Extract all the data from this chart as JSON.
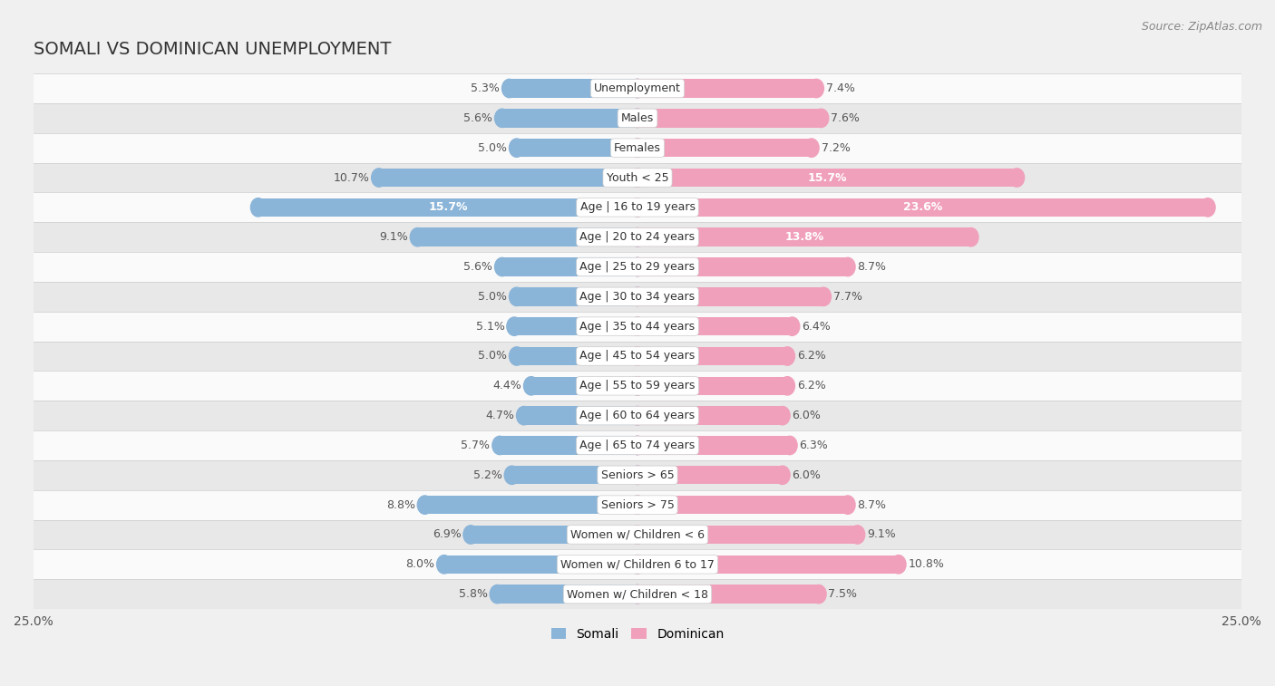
{
  "title": "SOMALI VS DOMINICAN UNEMPLOYMENT",
  "source": "Source: ZipAtlas.com",
  "categories": [
    "Unemployment",
    "Males",
    "Females",
    "Youth < 25",
    "Age | 16 to 19 years",
    "Age | 20 to 24 years",
    "Age | 25 to 29 years",
    "Age | 30 to 34 years",
    "Age | 35 to 44 years",
    "Age | 45 to 54 years",
    "Age | 55 to 59 years",
    "Age | 60 to 64 years",
    "Age | 65 to 74 years",
    "Seniors > 65",
    "Seniors > 75",
    "Women w/ Children < 6",
    "Women w/ Children 6 to 17",
    "Women w/ Children < 18"
  ],
  "somali": [
    5.3,
    5.6,
    5.0,
    10.7,
    15.7,
    9.1,
    5.6,
    5.0,
    5.1,
    5.0,
    4.4,
    4.7,
    5.7,
    5.2,
    8.8,
    6.9,
    8.0,
    5.8
  ],
  "dominican": [
    7.4,
    7.6,
    7.2,
    15.7,
    23.6,
    13.8,
    8.7,
    7.7,
    6.4,
    6.2,
    6.2,
    6.0,
    6.3,
    6.0,
    8.7,
    9.1,
    10.8,
    7.5
  ],
  "somali_color": "#8ab4d8",
  "dominican_color": "#f0a0bb",
  "somali_color_dark": "#5a8fbf",
  "dominican_color_dark": "#e06090",
  "background_color": "#f0f0f0",
  "row_bg_light": "#fafafa",
  "row_bg_dark": "#e8e8e8",
  "xlim": 25.0,
  "bar_height": 0.62,
  "label_fontsize": 9.0,
  "value_fontsize": 9.0,
  "title_fontsize": 14,
  "source_fontsize": 9,
  "inside_label_threshold": 12.0
}
